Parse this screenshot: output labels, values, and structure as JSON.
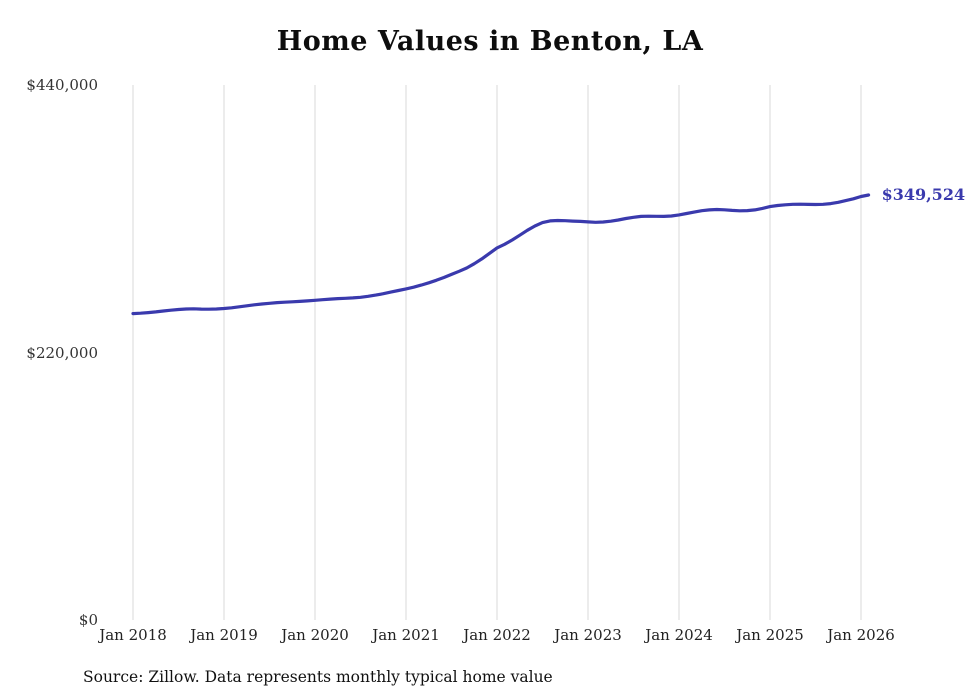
{
  "title": "Home Values in Benton, LA",
  "source": "Source: Zillow. Data represents monthly typical home value",
  "end_label": "$349,524",
  "accent_color": "#3a3aad",
  "gridline_color": "#d9d9d9",
  "chart_data": {
    "type": "line",
    "title": "Home Values in Benton, LA",
    "xlabel": "",
    "ylabel": "",
    "ylim": [
      0,
      440000
    ],
    "grid": "vertical-only",
    "legend": "none",
    "x_ticks": [
      "Jan 2018",
      "Jan 2019",
      "Jan 2020",
      "Jan 2021",
      "Jan 2022",
      "Jan 2023",
      "Jan 2024",
      "Jan 2025",
      "Jan 2026"
    ],
    "y_ticks": [
      {
        "label": "$0",
        "value": 0
      },
      {
        "label": "$220,000",
        "value": 220000
      },
      {
        "label": "$440,000",
        "value": 440000
      }
    ],
    "x_start_month": "Jan 2018",
    "x_end_month": "Feb 2026",
    "last_value_annotation": "$349,524",
    "series": [
      {
        "name": "Monthly typical home value",
        "values": [
          252000,
          252300,
          252800,
          253400,
          254100,
          254800,
          255400,
          255800,
          255900,
          255700,
          255600,
          255800,
          256200,
          256800,
          257600,
          258400,
          259200,
          259900,
          260500,
          261000,
          261400,
          261700,
          262000,
          262400,
          262900,
          263400,
          263900,
          264300,
          264600,
          264900,
          265400,
          266200,
          267200,
          268400,
          269700,
          271000,
          272300,
          273700,
          275400,
          277300,
          279400,
          281700,
          284200,
          286800,
          289500,
          293000,
          297000,
          301500,
          306000,
          309000,
          312500,
          316500,
          320500,
          324000,
          326800,
          328200,
          328600,
          328400,
          328100,
          327800,
          327400,
          327100,
          327300,
          328000,
          329000,
          330200,
          331200,
          331900,
          332100,
          332000,
          331900,
          332300,
          333200,
          334300,
          335500,
          336600,
          337300,
          337600,
          337400,
          336900,
          336500,
          336700,
          337300,
          338500,
          340000,
          340900,
          341500,
          341900,
          342000,
          341800,
          341700,
          341900,
          342500,
          343500,
          344900,
          346400,
          348300,
          349524
        ]
      }
    ]
  }
}
